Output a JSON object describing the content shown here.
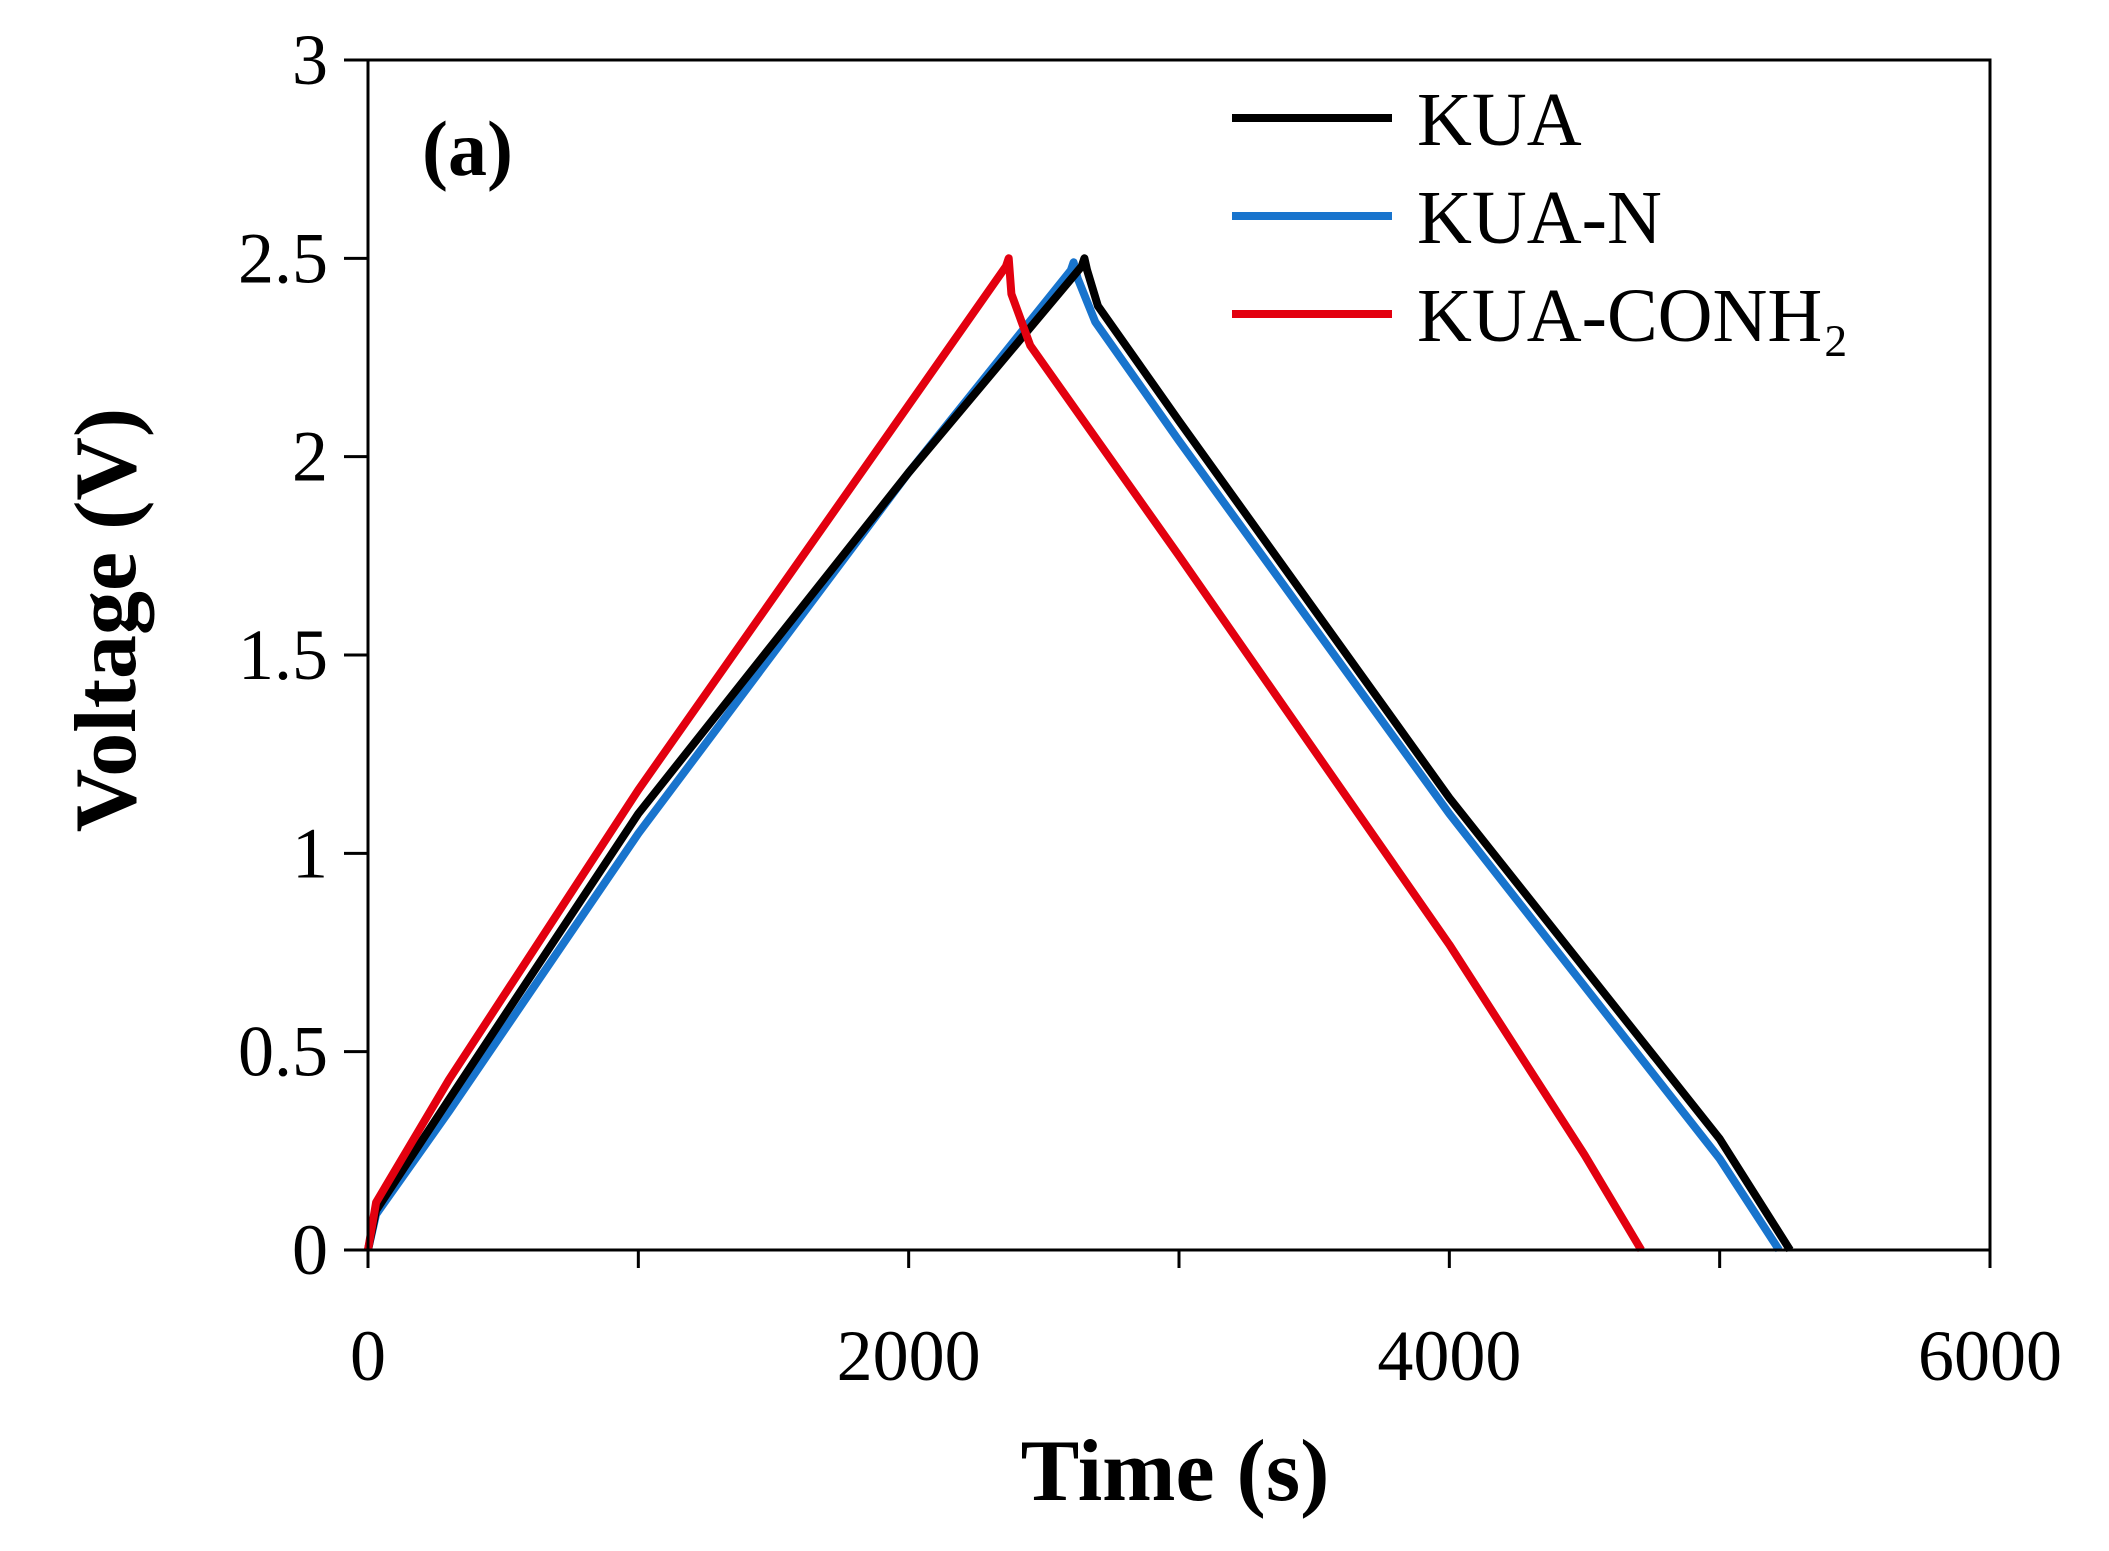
{
  "chart_data": {
    "type": "line",
    "panel_label": "(a)",
    "xlabel": "Time (s)",
    "ylabel": "Voltage (V)",
    "xlim": [
      0,
      6000
    ],
    "ylim": [
      0,
      3
    ],
    "x_ticks": [
      0,
      2000,
      4000,
      6000
    ],
    "x_minor_ticks": [
      1000,
      3000,
      5000
    ],
    "y_ticks": [
      0,
      0.5,
      1,
      1.5,
      2,
      2.5,
      3
    ],
    "y_tick_labels": [
      "0",
      "0.5",
      "1",
      "1.5",
      "2",
      "2.5",
      "3"
    ],
    "x_tick_labels": [
      "0",
      "2000",
      "4000",
      "6000"
    ],
    "grid": false,
    "legend_position": "top-right",
    "series": [
      {
        "name": "KUA",
        "color": "#000000",
        "points": [
          [
            0,
            0
          ],
          [
            30,
            0.1
          ],
          [
            300,
            0.38
          ],
          [
            1000,
            1.1
          ],
          [
            2000,
            1.96
          ],
          [
            2640,
            2.48
          ],
          [
            2650,
            2.5
          ],
          [
            2660,
            2.47
          ],
          [
            2700,
            2.38
          ],
          [
            3000,
            2.09
          ],
          [
            4000,
            1.14
          ],
          [
            5000,
            0.28
          ],
          [
            5260,
            0
          ]
        ]
      },
      {
        "name": "KUA-N",
        "color": "#1874cd",
        "points": [
          [
            0,
            0
          ],
          [
            30,
            0.09
          ],
          [
            300,
            0.35
          ],
          [
            1000,
            1.05
          ],
          [
            2000,
            1.96
          ],
          [
            2600,
            2.47
          ],
          [
            2610,
            2.49
          ],
          [
            2625,
            2.45
          ],
          [
            2690,
            2.34
          ],
          [
            3000,
            2.04
          ],
          [
            4000,
            1.1
          ],
          [
            5000,
            0.23
          ],
          [
            5220,
            0
          ]
        ]
      },
      {
        "name": "KUA-CONH₂",
        "color": "#e3000f",
        "points": [
          [
            0,
            0
          ],
          [
            30,
            0.12
          ],
          [
            300,
            0.43
          ],
          [
            1000,
            1.16
          ],
          [
            2000,
            2.13
          ],
          [
            2360,
            2.48
          ],
          [
            2370,
            2.5
          ],
          [
            2380,
            2.41
          ],
          [
            2450,
            2.28
          ],
          [
            3000,
            1.75
          ],
          [
            4000,
            0.77
          ],
          [
            4500,
            0.24
          ],
          [
            4710,
            0
          ]
        ]
      }
    ]
  }
}
